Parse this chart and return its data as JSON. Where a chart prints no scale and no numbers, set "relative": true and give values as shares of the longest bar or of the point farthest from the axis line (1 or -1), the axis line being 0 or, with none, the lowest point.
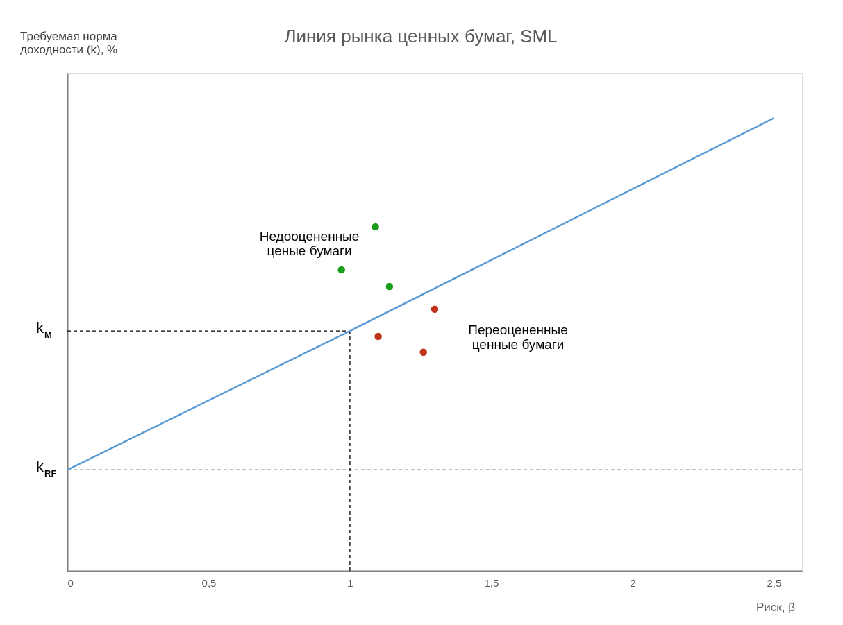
{
  "chart_data": {
    "type": "line",
    "title": "Линия рынка ценных бумаг, SML",
    "xlabel": "Риск, β",
    "relative": true,
    "xlim": [
      0,
      2.6
    ],
    "xticks": [
      0,
      {
        "value": 0.5,
        "label": "0,5"
      },
      1,
      {
        "value": 1.5,
        "label": "1,5"
      },
      2,
      {
        "value": 2.5,
        "label": "2,5"
      }
    ],
    "series": [
      {
        "color": "#5b9bd5",
        "x": [
          0,
          1,
          2.5
        ],
        "values": [
          0.223,
          0.53,
          1
        ]
      },
      {
        "type": "scatter",
        "marker": "circle",
        "color": "#1a9e1a",
        "x": [
          1.09,
          0.97,
          1.14
        ],
        "values": [
          0.76,
          0.665,
          0.628
        ]
      },
      {
        "type": "scatter",
        "marker": "circle",
        "color": "#c0321a",
        "x": [
          1.3,
          1.1,
          1.26
        ],
        "values": [
          0.578,
          0.518,
          0.483
        ]
      }
    ],
    "ref_lines": [
      {
        "axis": "y",
        "value": 0.53,
        "label": "k$_{M}$",
        "line_style": "dashed",
        "color": "#000000"
      },
      {
        "axis": "x",
        "value": 1,
        "line_style": "dashed",
        "color": "#000000"
      },
      {
        "axis": "y",
        "value": 0.223,
        "label": "k$_{RF}$",
        "line_style": "dashed",
        "color": "#000000"
      }
    ],
    "annotations": [
      "Недооцененные\nценые бумаги",
      "Переоцененные\nценные бумаги",
      "Требуемая норма\nдоходности (k), %"
    ],
    "grid": false,
    "line_style": "solid"
  }
}
